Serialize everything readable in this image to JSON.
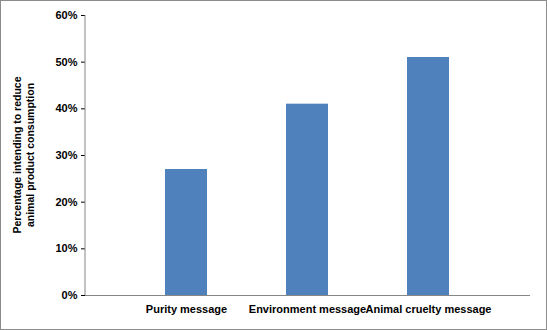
{
  "chart_data": {
    "type": "bar",
    "categories": [
      "Purity message",
      "Environment message",
      "Animal cruelty message"
    ],
    "values": [
      27,
      41,
      51
    ],
    "color": "#4f81bd",
    "ylabel": "Percentage intending to reduce animal product consumption",
    "ylim": [
      0,
      60
    ],
    "yticks": [
      {
        "value": 0,
        "label": "0%"
      },
      {
        "value": 10,
        "label": "10%"
      },
      {
        "value": 20,
        "label": "20%"
      },
      {
        "value": 30,
        "label": "30%"
      },
      {
        "value": 40,
        "label": "40%"
      },
      {
        "value": 50,
        "label": "50%"
      },
      {
        "value": 60,
        "label": "60%"
      }
    ],
    "grid": false
  }
}
